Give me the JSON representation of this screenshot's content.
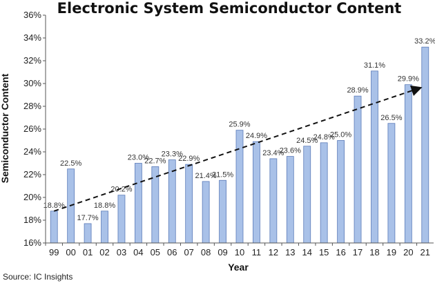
{
  "chart_data": {
    "type": "bar",
    "title": "Electronic System Semiconductor Content",
    "xlabel": "Year",
    "ylabel": "Semiconductor Content",
    "categories": [
      "99",
      "00",
      "01",
      "02",
      "03",
      "04",
      "05",
      "06",
      "07",
      "08",
      "09",
      "10",
      "11",
      "12",
      "13",
      "14",
      "15",
      "16",
      "17",
      "18",
      "19",
      "20",
      "21"
    ],
    "values": [
      18.8,
      22.5,
      17.7,
      18.8,
      20.2,
      23.0,
      22.7,
      23.3,
      22.9,
      21.4,
      21.5,
      25.9,
      24.9,
      23.4,
      23.6,
      24.5,
      24.8,
      25.0,
      28.9,
      31.1,
      26.5,
      29.9,
      33.2
    ],
    "data_labels": [
      "18.8%",
      "22.5%",
      "17.7%",
      "18.8%",
      "20.2%",
      "23.0%",
      "22.7%",
      "23.3%",
      "22.9%",
      "21.4%",
      "21.5%",
      "25.9%",
      "24.9%",
      "23.4%",
      "23.6%",
      "24.5%",
      "24.8%",
      "25.0%",
      "28.9%",
      "31.1%",
      "26.5%",
      "29.9%",
      "33.2%"
    ],
    "ylim": [
      16,
      36
    ],
    "yticks": [
      16,
      18,
      20,
      22,
      24,
      26,
      28,
      30,
      32,
      34,
      36
    ],
    "ytick_labels": [
      "16%",
      "18%",
      "20%",
      "22%",
      "24%",
      "26%",
      "28%",
      "30%",
      "32%",
      "34%",
      "36%"
    ],
    "trendline": {
      "style": "dashed-arrow",
      "start": 18.8,
      "end": 29.6
    },
    "grid": false,
    "colors": {
      "bar_fill": "#a9c1e8",
      "bar_stroke": "#5a7ab8",
      "trend": "#111111"
    }
  },
  "source": "Source: IC Insights"
}
